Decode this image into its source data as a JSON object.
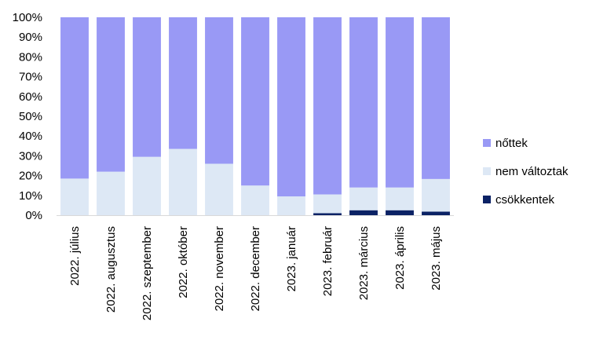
{
  "chart_data": {
    "type": "bar",
    "stacked": true,
    "percent": true,
    "categories": [
      "2022. július",
      "2022. augusztus",
      "2022. szeptember",
      "2022. október",
      "2022. november",
      "2022. december",
      "2023. január",
      "2023. február",
      "2023. március",
      "2023. április",
      "2023. május"
    ],
    "series": [
      {
        "name": "csökkentek",
        "color": "#0b2265",
        "values": [
          0,
          0,
          0,
          0,
          0,
          0,
          0,
          1,
          2.5,
          2.5,
          1.8
        ]
      },
      {
        "name": "nem változtak",
        "color": "#dde8f5",
        "values": [
          18.5,
          22,
          29.5,
          33.5,
          26,
          15,
          9.5,
          9.5,
          11.5,
          11.5,
          16.5
        ]
      },
      {
        "name": "nőttek",
        "color": "#9999f5",
        "values": [
          81.5,
          78,
          70.5,
          66.5,
          74,
          85,
          90.5,
          89.5,
          86,
          86,
          81.7
        ]
      }
    ],
    "yticks": [
      "0%",
      "10%",
      "20%",
      "30%",
      "40%",
      "50%",
      "60%",
      "70%",
      "80%",
      "90%",
      "100%"
    ],
    "ylim": [
      0,
      100
    ],
    "title": "",
    "xlabel": "",
    "ylabel": "",
    "grid": false,
    "legend_position": "right",
    "legend_order": [
      "nőttek",
      "nem változtak",
      "csökkentek"
    ]
  }
}
